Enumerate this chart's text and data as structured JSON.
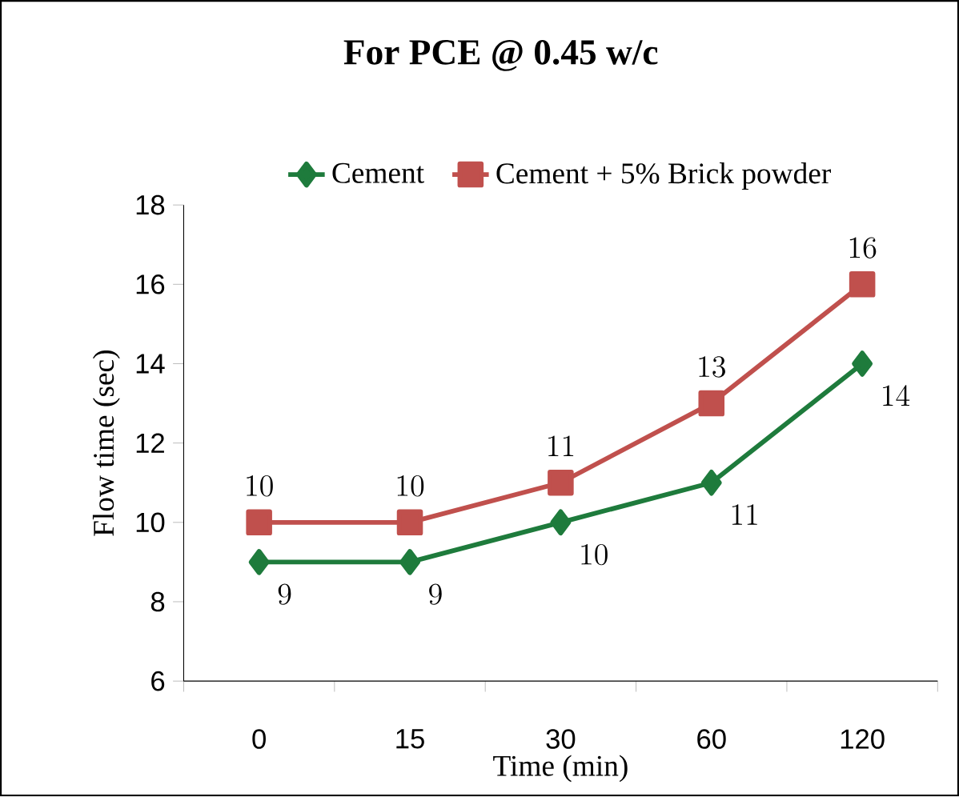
{
  "chart_data": {
    "type": "line",
    "title": "For PCE @ 0.45 w/c",
    "xlabel": "Time (min)",
    "ylabel": "Flow time (sec)",
    "categories": [
      "0",
      "15",
      "30",
      "60",
      "120"
    ],
    "series": [
      {
        "name": "Cement",
        "color": "#1e7b3c",
        "marker": "diamond",
        "values": [
          9,
          9,
          10,
          11,
          14
        ]
      },
      {
        "name": "Cement + 5% Brick powder",
        "color": "#c0504d",
        "marker": "square",
        "values": [
          10,
          10,
          11,
          13,
          16
        ]
      }
    ],
    "ylim": [
      6,
      18
    ],
    "yticks": [
      6,
      8,
      10,
      12,
      14,
      16,
      18
    ],
    "legend": "top",
    "data_labels": true
  }
}
